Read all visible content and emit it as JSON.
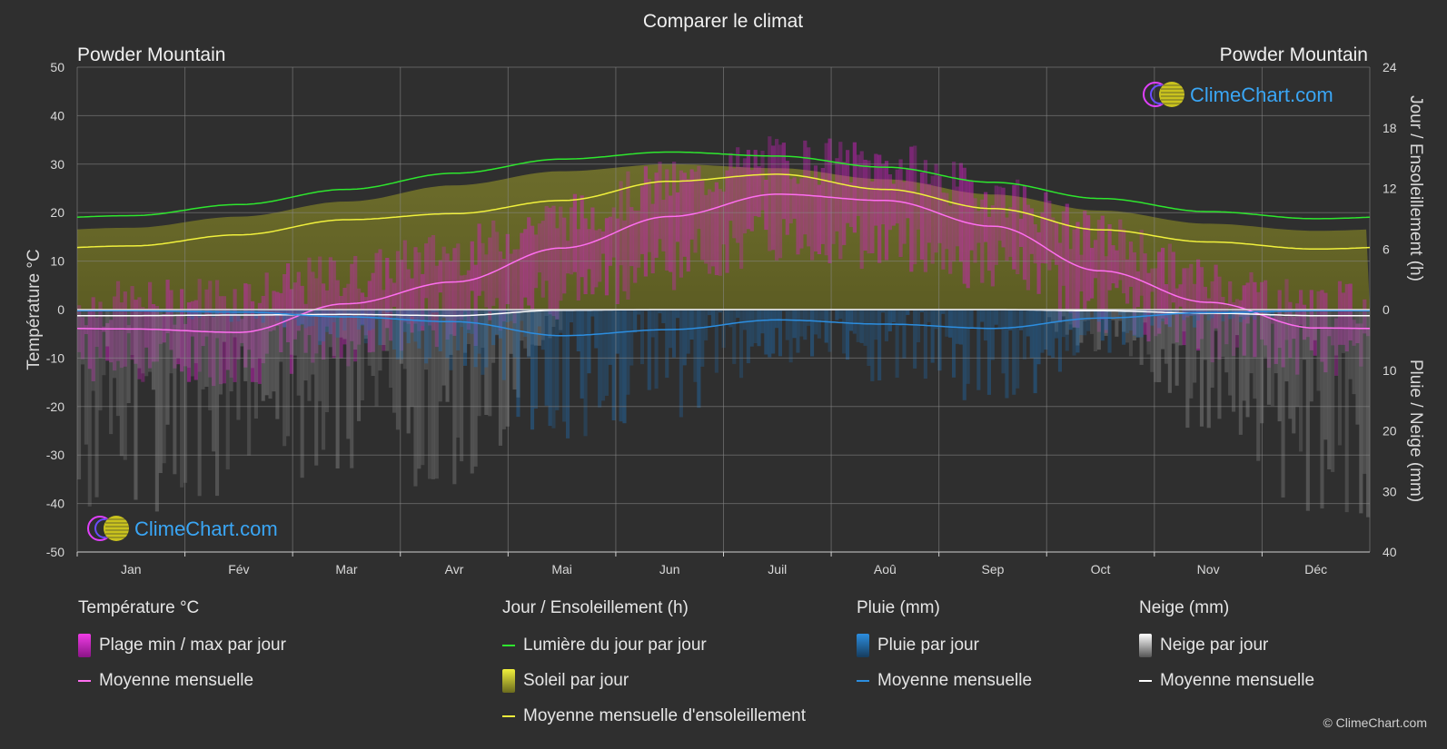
{
  "title": "Comparer le climat",
  "location_left": "Powder Mountain",
  "location_right": "Powder Mountain",
  "logo_text": "ClimeChart.com",
  "copyright": "© ClimeChart.com",
  "axes": {
    "left_label": "Température °C",
    "right_top_label": "Jour / Ensoleillement (h)",
    "right_bottom_label": "Pluie / Neige (mm)",
    "left_ticks": [
      "50",
      "40",
      "30",
      "20",
      "10",
      "0",
      "-10",
      "-20",
      "-30",
      "-40",
      "-50"
    ],
    "right_top_ticks": [
      "24",
      "18",
      "12",
      "6",
      "0"
    ],
    "right_bottom_ticks": [
      "10",
      "20",
      "30",
      "40"
    ]
  },
  "legend": {
    "temp": {
      "title": "Température °C",
      "range": "Plage min / max par jour",
      "mean": "Moyenne mensuelle"
    },
    "sun": {
      "title": "Jour / Ensoleillement (h)",
      "daylight": "Lumière du jour par jour",
      "sunshine": "Soleil par jour",
      "sun_mean": "Moyenne mensuelle d'ensoleillement"
    },
    "rain": {
      "title": "Pluie (mm)",
      "per_day": "Pluie par jour",
      "mean": "Moyenne mensuelle"
    },
    "snow": {
      "title": "Neige (mm)",
      "per_day": "Neige par jour",
      "mean": "Moyenne mensuelle"
    }
  },
  "colors": {
    "background": "#2f2f2f",
    "temp_mean": "#ff6ef0",
    "temp_range": "#d81fc9",
    "daylight": "#2ee62e",
    "sunshine_fill": "#9a9a2a",
    "sunshine_mean": "#f0f03c",
    "rain_mean": "#2c8ee0",
    "rain_bar": "#1f6fb5",
    "snow_mean": "#ffffff",
    "snow_bar": "#8a8a8a",
    "logo": "#3aa6f5"
  },
  "chart_data": {
    "type": "line",
    "categories": [
      "Jan",
      "Fév",
      "Mar",
      "Avr",
      "Mai",
      "Jun",
      "Juil",
      "Aoû",
      "Sep",
      "Oct",
      "Nov",
      "Déc"
    ],
    "temp_ylim": [
      -50,
      50
    ],
    "hours_ylim": [
      0,
      24
    ],
    "precip_ylim": [
      0,
      40
    ],
    "series": [
      {
        "name": "Lumière du jour par jour",
        "axis": "hours",
        "values": [
          9.3,
          10.4,
          11.9,
          13.5,
          14.9,
          15.6,
          15.2,
          14.1,
          12.6,
          11.0,
          9.7,
          9.0
        ]
      },
      {
        "name": "Moyenne mensuelle d'ensoleillement",
        "axis": "hours",
        "values": [
          6.3,
          7.4,
          8.9,
          9.5,
          10.8,
          12.7,
          13.4,
          11.9,
          10.0,
          7.9,
          6.7,
          6.0
        ]
      },
      {
        "name": "Moyenne mensuelle (température)",
        "axis": "temp",
        "values": [
          -4.0,
          -4.7,
          1.2,
          5.7,
          12.7,
          19.2,
          23.8,
          22.5,
          17.2,
          8.0,
          1.5,
          -3.8
        ]
      },
      {
        "name": "Moyenne mensuelle (pluie)",
        "axis": "precip",
        "values": [
          0.2,
          0.4,
          1.2,
          2.0,
          4.3,
          3.3,
          1.7,
          2.4,
          3.1,
          1.4,
          0.5,
          0.2
        ]
      },
      {
        "name": "Moyenne mensuelle (neige)",
        "axis": "precip",
        "values": [
          1.0,
          0.9,
          0.8,
          1.0,
          0.1,
          0.0,
          0.0,
          0.0,
          0.0,
          0.2,
          0.6,
          1.0
        ]
      }
    ],
    "temp_range_daily_approx": {
      "max": [
        1,
        3,
        7,
        12,
        19,
        26,
        31,
        30,
        24,
        15,
        6,
        1
      ],
      "min": [
        -10,
        -10,
        -6,
        -2,
        4,
        10,
        15,
        14,
        9,
        1,
        -5,
        -9
      ]
    },
    "grid": true
  }
}
